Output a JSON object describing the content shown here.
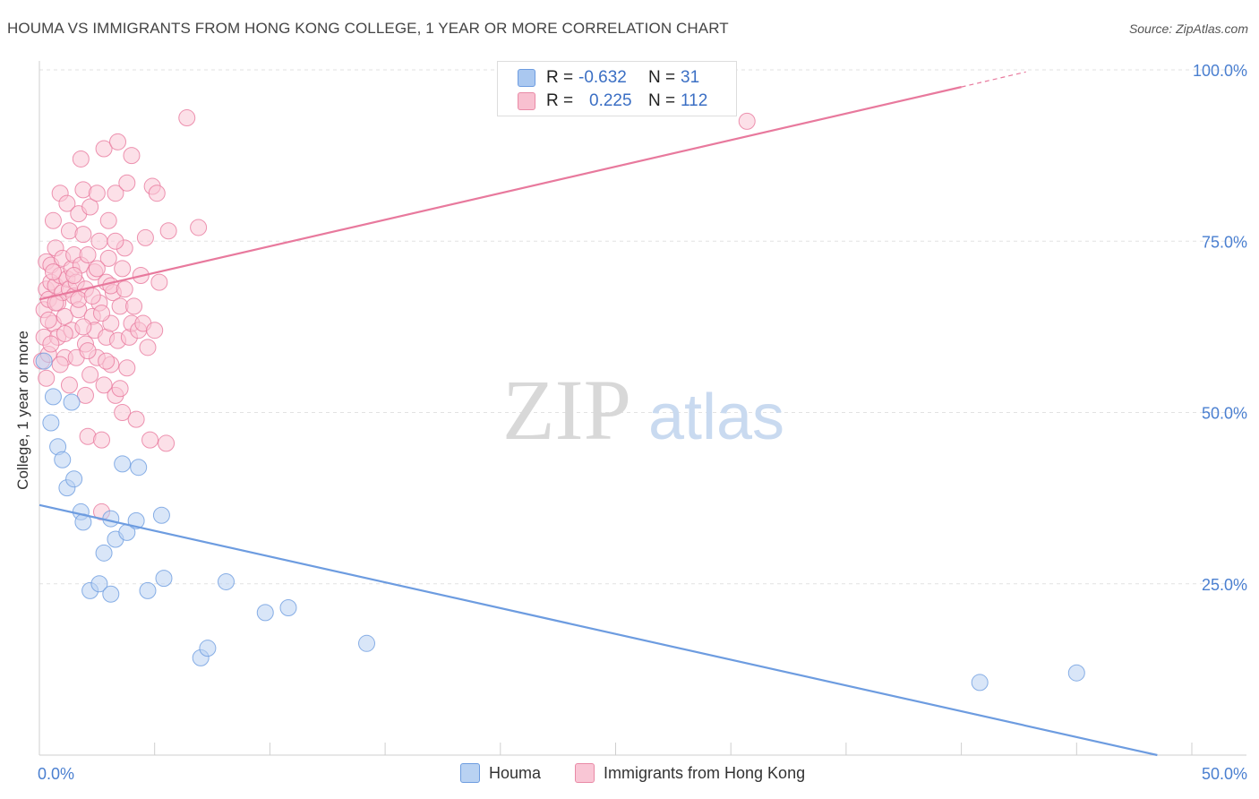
{
  "title": "HOUMA VS IMMIGRANTS FROM HONG KONG COLLEGE, 1 YEAR OR MORE CORRELATION CHART",
  "source": "Source: ZipAtlas.com",
  "watermark": {
    "zip": "ZIP",
    "atlas": "atlas"
  },
  "legend": {
    "r_label": "R =",
    "n_label": "N =",
    "rows": [
      {
        "r": "-0.632",
        "n": "31",
        "color": "#aac8f0",
        "border": "#6d9ce0"
      },
      {
        "r": "0.225",
        "n": "112",
        "color": "#f8c0d0",
        "border": "#e98aa6"
      }
    ]
  },
  "bottom_legend": [
    {
      "label": "Houma",
      "color": "#b9d2f2",
      "border": "#6d9ce0"
    },
    {
      "label": "Immigrants from Hong Kong",
      "color": "#f9c6d5",
      "border": "#e98aa6"
    }
  ],
  "chart_data": {
    "type": "scatter",
    "title": "HOUMA VS IMMIGRANTS FROM HONG KONG COLLEGE, 1 YEAR OR MORE CORRELATION CHART",
    "xlabel": "",
    "ylabel": "College, 1 year or more",
    "xlim": [
      0,
      50
    ],
    "ylim": [
      0,
      100
    ],
    "x_tick_labels": [
      "0.0%",
      "50.0%"
    ],
    "y_ticks": [
      25,
      50,
      75,
      100
    ],
    "y_tick_labels": [
      "25.0%",
      "50.0%",
      "75.0%",
      "100.0%"
    ],
    "grid": true,
    "series": [
      {
        "name": "Houma",
        "color": "#6d9ce0",
        "fill": "#b9d2f2",
        "trend": {
          "x0": 0,
          "y0": 36.5,
          "x1": 48.5,
          "y1": 0,
          "dashed_to": null
        },
        "points": [
          [
            0.2,
            57.5
          ],
          [
            0.5,
            48.5
          ],
          [
            0.6,
            52.3
          ],
          [
            0.8,
            45.0
          ],
          [
            1.0,
            43.1
          ],
          [
            1.4,
            51.5
          ],
          [
            1.2,
            39.0
          ],
          [
            1.5,
            40.3
          ],
          [
            1.8,
            35.5
          ],
          [
            1.9,
            34.0
          ],
          [
            2.2,
            24.0
          ],
          [
            2.6,
            25.0
          ],
          [
            2.8,
            29.5
          ],
          [
            3.1,
            34.5
          ],
          [
            3.1,
            23.5
          ],
          [
            3.3,
            31.5
          ],
          [
            3.6,
            42.5
          ],
          [
            3.8,
            32.5
          ],
          [
            4.2,
            34.2
          ],
          [
            4.3,
            42.0
          ],
          [
            4.7,
            24.0
          ],
          [
            5.3,
            35.0
          ],
          [
            5.4,
            25.8
          ],
          [
            7.0,
            14.2
          ],
          [
            7.3,
            15.6
          ],
          [
            8.1,
            25.3
          ],
          [
            9.8,
            20.8
          ],
          [
            10.8,
            21.5
          ],
          [
            14.2,
            16.3
          ],
          [
            40.8,
            10.6
          ],
          [
            45.0,
            12.0
          ]
        ]
      },
      {
        "name": "Immigrants from Hong Kong",
        "color": "#e8799d",
        "fill": "#f9c6d5",
        "trend": {
          "x0": 0,
          "y0": 66.5,
          "x1": 40.0,
          "y1": 97.5,
          "dashed_to": {
            "x": 42.8,
            "y": 99.7
          }
        },
        "points": [
          [
            0.1,
            57.5
          ],
          [
            0.2,
            61.0
          ],
          [
            0.2,
            65.0
          ],
          [
            0.3,
            68.0
          ],
          [
            0.3,
            72.0
          ],
          [
            0.4,
            58.5
          ],
          [
            0.4,
            66.5
          ],
          [
            0.5,
            69.0
          ],
          [
            0.5,
            71.5
          ],
          [
            0.6,
            78.0
          ],
          [
            0.6,
            63.0
          ],
          [
            0.7,
            68.5
          ],
          [
            0.7,
            74.0
          ],
          [
            0.8,
            61.0
          ],
          [
            0.8,
            66.0
          ],
          [
            0.9,
            70.0
          ],
          [
            0.9,
            82.0
          ],
          [
            1.0,
            67.5
          ],
          [
            1.0,
            72.5
          ],
          [
            1.1,
            58.0
          ],
          [
            1.1,
            64.0
          ],
          [
            1.2,
            69.5
          ],
          [
            1.2,
            80.5
          ],
          [
            1.3,
            68.0
          ],
          [
            1.3,
            76.5
          ],
          [
            1.4,
            71.0
          ],
          [
            1.4,
            62.0
          ],
          [
            1.5,
            67.0
          ],
          [
            1.5,
            73.0
          ],
          [
            1.6,
            58.0
          ],
          [
            1.6,
            69.0
          ],
          [
            1.7,
            79.0
          ],
          [
            1.7,
            65.0
          ],
          [
            1.8,
            87.0
          ],
          [
            1.8,
            71.5
          ],
          [
            1.9,
            76.0
          ],
          [
            1.9,
            82.5
          ],
          [
            2.0,
            52.5
          ],
          [
            2.0,
            60.0
          ],
          [
            2.0,
            68.0
          ],
          [
            2.1,
            73.0
          ],
          [
            2.1,
            46.5
          ],
          [
            2.2,
            55.5
          ],
          [
            2.2,
            80.0
          ],
          [
            2.3,
            64.0
          ],
          [
            2.4,
            62.0
          ],
          [
            2.4,
            70.5
          ],
          [
            2.5,
            82.0
          ],
          [
            2.5,
            58.0
          ],
          [
            2.6,
            66.0
          ],
          [
            2.6,
            75.0
          ],
          [
            2.7,
            35.5
          ],
          [
            2.7,
            46.0
          ],
          [
            2.8,
            54.0
          ],
          [
            2.8,
            88.5
          ],
          [
            2.9,
            61.0
          ],
          [
            2.9,
            69.0
          ],
          [
            3.0,
            72.5
          ],
          [
            3.0,
            78.0
          ],
          [
            3.1,
            57.0
          ],
          [
            3.1,
            63.0
          ],
          [
            3.2,
            67.5
          ],
          [
            3.3,
            52.5
          ],
          [
            3.3,
            82.0
          ],
          [
            3.4,
            60.5
          ],
          [
            3.4,
            89.5
          ],
          [
            3.5,
            65.5
          ],
          [
            3.6,
            50.0
          ],
          [
            3.6,
            71.0
          ],
          [
            3.7,
            74.0
          ],
          [
            3.8,
            56.5
          ],
          [
            3.8,
            83.5
          ],
          [
            3.9,
            61.0
          ],
          [
            4.0,
            63.0
          ],
          [
            4.0,
            87.5
          ],
          [
            4.1,
            65.5
          ],
          [
            4.2,
            49.0
          ],
          [
            4.3,
            62.0
          ],
          [
            4.4,
            70.0
          ],
          [
            4.5,
            63.0
          ],
          [
            4.6,
            75.5
          ],
          [
            4.7,
            59.5
          ],
          [
            4.8,
            46.0
          ],
          [
            4.9,
            83.0
          ],
          [
            5.0,
            62.0
          ],
          [
            5.1,
            82.0
          ],
          [
            5.2,
            69.0
          ],
          [
            5.5,
            45.5
          ],
          [
            5.6,
            76.5
          ],
          [
            6.4,
            93.0
          ],
          [
            6.9,
            77.0
          ],
          [
            30.7,
            92.5
          ],
          [
            0.3,
            55.0
          ],
          [
            0.5,
            60.0
          ],
          [
            0.7,
            66.0
          ],
          [
            0.9,
            57.0
          ],
          [
            1.1,
            61.5
          ],
          [
            1.3,
            54.0
          ],
          [
            1.5,
            70.0
          ],
          [
            1.7,
            66.5
          ],
          [
            1.9,
            62.5
          ],
          [
            2.1,
            59.0
          ],
          [
            2.3,
            67.0
          ],
          [
            2.5,
            71.0
          ],
          [
            2.7,
            64.5
          ],
          [
            2.9,
            57.5
          ],
          [
            3.1,
            68.5
          ],
          [
            3.3,
            75.0
          ],
          [
            3.5,
            53.5
          ],
          [
            3.7,
            68.0
          ],
          [
            0.4,
            63.5
          ],
          [
            0.6,
            70.5
          ]
        ]
      }
    ]
  }
}
